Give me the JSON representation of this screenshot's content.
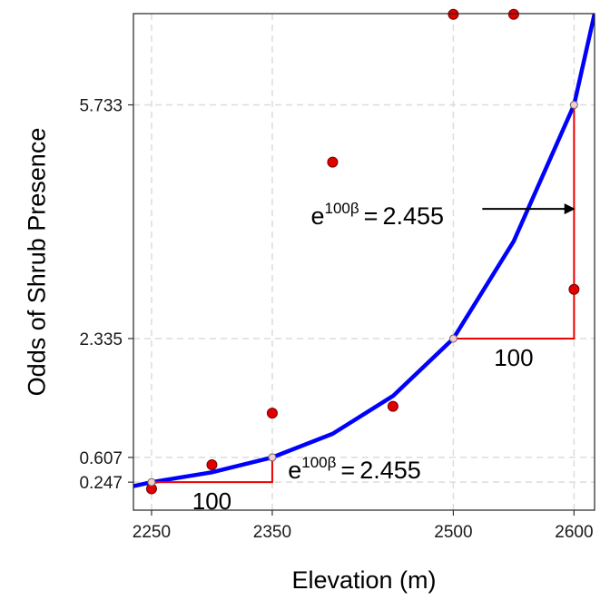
{
  "chart_data": {
    "type": "scatter",
    "xlabel": "Elevation (m)",
    "ylabel": "Odds of Shrub Presence",
    "xlim": [
      2235,
      2617
    ],
    "ylim": [
      -0.16,
      7.06
    ],
    "x_ticks": [
      {
        "value": 2250,
        "label": "2250"
      },
      {
        "value": 2350,
        "label": "2350"
      },
      {
        "value": 2500,
        "label": "2500"
      },
      {
        "value": 2600,
        "label": "2600"
      }
    ],
    "y_ticks": [
      {
        "value": 0.247,
        "label": "0.247"
      },
      {
        "value": 0.607,
        "label": "0.607"
      },
      {
        "value": 2.335,
        "label": "2.335"
      },
      {
        "value": 5.733,
        "label": "5.733"
      }
    ],
    "grid": true,
    "observed_points": {
      "color": "#e00000",
      "x": [
        2250,
        2300,
        2350,
        2400,
        2450,
        2500,
        2550,
        2600
      ],
      "y": [
        0.15,
        0.5,
        1.25,
        4.9,
        1.35,
        7.05,
        7.05,
        3.05
      ]
    },
    "fitted_curve": {
      "color": "#0000ff",
      "x": [
        2235,
        2250,
        2300,
        2350,
        2400,
        2450,
        2500,
        2550,
        2600,
        2617
      ],
      "y": [
        0.19,
        0.247,
        0.39,
        0.607,
        0.95,
        1.5,
        2.335,
        3.75,
        5.733,
        7.06
      ]
    },
    "marked_points": {
      "x": [
        2250,
        2350,
        2500,
        2600
      ],
      "y": [
        0.247,
        0.607,
        2.335,
        5.733
      ]
    },
    "step_segments": [
      {
        "x0": 2250,
        "x1": 2350,
        "y0": 0.247,
        "y1": 0.607,
        "run_label": "100"
      },
      {
        "x0": 2500,
        "x1": 2600,
        "y0": 2.335,
        "y1": 5.733,
        "run_label": "100"
      }
    ],
    "annotations": [
      {
        "base": "e",
        "superscript": "100β",
        "equals": "=",
        "value": "2.455",
        "x": 2363,
        "y": 0.3
      },
      {
        "base": "e",
        "superscript": "100β",
        "equals": "=",
        "value": "2.455",
        "x": 2382,
        "y": 4.0
      }
    ],
    "arrow": {
      "from_x": 2524,
      "from_y": 4.22,
      "to_x": 2601,
      "to_y": 4.22
    },
    "colors": {
      "step": "#ee0000",
      "grid": "#dcdcdc"
    }
  }
}
